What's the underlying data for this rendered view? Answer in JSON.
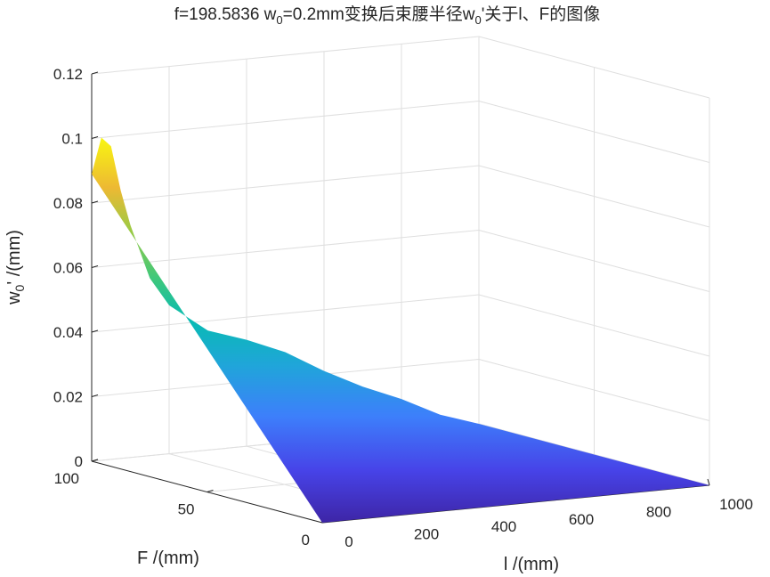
{
  "chart_data": {
    "type": "surface",
    "title_parts": {
      "t1": "f=198.5836 w",
      "t1_sub": "0",
      "t2": "=0.2mm变换后束腰半径w",
      "t2_sub": "0",
      "t3": "'关于l、F的图像"
    },
    "xlabel": "l /(mm)",
    "ylabel": "F /(mm)",
    "zlabel_parts": {
      "main": "w",
      "sub": "0",
      "rest": "' /(mm)"
    },
    "xlim": [
      0,
      1000
    ],
    "ylim": [
      0,
      100
    ],
    "zlim": [
      0,
      0.12
    ],
    "x_ticks": [
      "0",
      "200",
      "400",
      "600",
      "800",
      "1000"
    ],
    "y_ticks": [
      "0",
      "50",
      "100"
    ],
    "z_ticks": [
      "0",
      "0.02",
      "0.04",
      "0.06",
      "0.08",
      "0.1",
      "0.12"
    ],
    "grid": true,
    "colormap": "parula",
    "surface_edge_l": [
      0,
      25,
      50,
      75,
      100,
      150,
      200,
      300,
      400,
      500,
      600,
      700,
      800,
      900,
      1000
    ],
    "surface_edge_w0_at_F100": [
      0.089,
      0.1,
      0.097,
      0.083,
      0.072,
      0.055,
      0.046,
      0.037,
      0.033,
      0.028,
      0.021,
      0.015,
      0.01,
      0.004,
      0.0
    ],
    "surface_edge_w0_at_F0": 0.0
  }
}
